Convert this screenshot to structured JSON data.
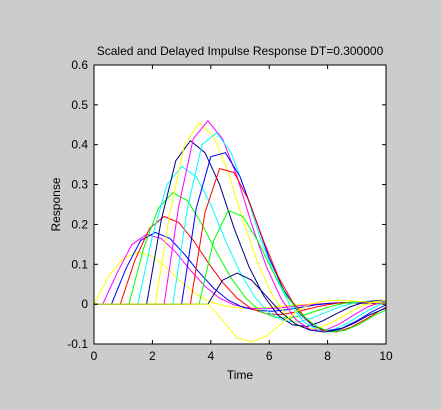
{
  "chart_data": {
    "type": "line",
    "title": "Scaled and Delayed Impulse Response DT=0.300000",
    "xlabel": "Time",
    "ylabel": "Response",
    "xlim": [
      0,
      10
    ],
    "ylim": [
      -0.1,
      0.6
    ],
    "xticks": [
      0,
      2,
      4,
      6,
      8,
      10
    ],
    "xtick_labels": [
      "0",
      "2",
      "4",
      "6",
      "8",
      "10"
    ],
    "yticks": [
      -0.1,
      0,
      0.1,
      0.2,
      0.3,
      0.4,
      0.5,
      0.6
    ],
    "ytick_labels": [
      "-0.1",
      "0",
      "0.1",
      "0.2",
      "0.3",
      "0.4",
      "0.5",
      "0.6"
    ],
    "grid": false,
    "background": "#cccccc",
    "axes_background": "#ffffff",
    "series": [
      {
        "color": "#ffff00",
        "x": [
          0,
          0.5,
          1,
          1.5,
          2,
          2.5,
          3,
          3.5,
          4,
          4.5,
          5,
          5.5,
          6,
          6.5,
          7,
          7.5,
          8,
          8.5,
          9,
          9.5,
          10
        ],
        "y": [
          0,
          0.07,
          0.115,
          0.13,
          0.12,
          0.09,
          0.055,
          0.025,
          0.005,
          -0.005,
          -0.01,
          -0.01,
          -0.008,
          -0.005,
          -0.002,
          0,
          0.002,
          0.002,
          0.001,
          0,
          0
        ]
      },
      {
        "color": "#ff00ff",
        "x": [
          0,
          0.3,
          0.8,
          1.3,
          1.8,
          2.3,
          2.8,
          3.3,
          3.8,
          4.3,
          4.8,
          5.3,
          5.8,
          6.3,
          6.8,
          7.3,
          7.8,
          8.3,
          8.8,
          9.3,
          10
        ],
        "y": [
          0,
          0,
          0.08,
          0.15,
          0.175,
          0.165,
          0.13,
          0.085,
          0.045,
          0.015,
          -0.002,
          -0.01,
          -0.012,
          -0.01,
          -0.006,
          -0.002,
          0.001,
          0.003,
          0.003,
          0.002,
          0.001
        ]
      },
      {
        "color": "#0000ff",
        "x": [
          0,
          0.6,
          1.1,
          1.6,
          2.1,
          2.6,
          3.1,
          3.6,
          4.1,
          4.6,
          5.1,
          5.6,
          6.1,
          6.6,
          7.1,
          7.6,
          8.1,
          8.6,
          9.1,
          9.6,
          10
        ],
        "y": [
          0,
          0,
          0.09,
          0.16,
          0.18,
          0.165,
          0.125,
          0.08,
          0.04,
          0.01,
          -0.008,
          -0.016,
          -0.018,
          -0.014,
          -0.008,
          -0.002,
          0.002,
          0.004,
          0.003,
          0.002,
          0.001
        ]
      },
      {
        "color": "#ff0000",
        "x": [
          0,
          0.9,
          1.4,
          1.9,
          2.4,
          2.9,
          3.4,
          3.9,
          4.4,
          4.9,
          5.4,
          5.9,
          6.4,
          6.9,
          7.4,
          7.9,
          8.4,
          8.9,
          9.4,
          10
        ],
        "y": [
          0,
          0,
          0.11,
          0.19,
          0.22,
          0.205,
          0.16,
          0.105,
          0.055,
          0.015,
          -0.012,
          -0.024,
          -0.026,
          -0.02,
          -0.011,
          -0.003,
          0.003,
          0.005,
          0.004,
          0.002
        ]
      },
      {
        "color": "#00ff00",
        "x": [
          0,
          1.2,
          1.7,
          2.2,
          2.7,
          3.2,
          3.7,
          4.2,
          4.7,
          5.2,
          5.7,
          6.2,
          6.7,
          7.2,
          7.7,
          8.2,
          8.7,
          9.2,
          9.7,
          10
        ],
        "y": [
          0,
          0,
          0.14,
          0.24,
          0.28,
          0.26,
          0.2,
          0.13,
          0.065,
          0.015,
          -0.018,
          -0.033,
          -0.035,
          -0.027,
          -0.015,
          -0.004,
          0.004,
          0.007,
          0.005,
          0.004
        ]
      },
      {
        "color": "#00ffff",
        "x": [
          0,
          1.5,
          2.0,
          2.5,
          3.0,
          3.5,
          4.0,
          4.5,
          5.0,
          5.5,
          6.0,
          6.5,
          7.0,
          7.5,
          8.0,
          8.5,
          9.0,
          9.5,
          10
        ],
        "y": [
          0,
          0,
          0.17,
          0.3,
          0.345,
          0.32,
          0.25,
          0.16,
          0.08,
          0.018,
          -0.022,
          -0.042,
          -0.045,
          -0.034,
          -0.019,
          -0.005,
          0.005,
          0.008,
          0.007
        ]
      },
      {
        "color": "#000080",
        "x": [
          0,
          1.8,
          2.3,
          2.8,
          3.3,
          3.8,
          4.3,
          4.8,
          5.3,
          5.8,
          6.3,
          6.8,
          7.3,
          7.8,
          8.3,
          8.8,
          9.3,
          9.8,
          10
        ],
        "y": [
          0,
          0,
          0.21,
          0.36,
          0.41,
          0.38,
          0.3,
          0.19,
          0.095,
          0.022,
          -0.028,
          -0.052,
          -0.056,
          -0.043,
          -0.024,
          -0.006,
          0.006,
          0.01,
          0.009
        ]
      },
      {
        "color": "#ffff00",
        "x": [
          0,
          2.1,
          2.6,
          3.1,
          3.6,
          4.1,
          4.6,
          5.1,
          5.6,
          6.1,
          6.6,
          7.1,
          7.6,
          8.1,
          8.6,
          9.1,
          9.6,
          10
        ],
        "y": [
          0,
          0,
          0.23,
          0.4,
          0.455,
          0.42,
          0.33,
          0.21,
          0.105,
          0.024,
          -0.03,
          -0.058,
          -0.062,
          -0.048,
          -0.027,
          -0.007,
          0.006,
          0.01
        ]
      },
      {
        "color": "#ff00ff",
        "x": [
          0,
          2.4,
          2.9,
          3.4,
          3.9,
          4.4,
          4.9,
          5.4,
          5.9,
          6.4,
          6.9,
          7.4,
          7.9,
          8.4,
          8.9,
          9.4,
          9.9,
          10
        ],
        "y": [
          0,
          0,
          0.245,
          0.415,
          0.46,
          0.415,
          0.32,
          0.2,
          0.095,
          0.015,
          -0.038,
          -0.064,
          -0.066,
          -0.05,
          -0.027,
          -0.006,
          0.006,
          0.007
        ]
      },
      {
        "color": "#00ffff",
        "x": [
          0,
          2.7,
          3.2,
          3.7,
          4.2,
          4.7,
          5.2,
          5.7,
          6.2,
          6.7,
          7.2,
          7.7,
          8.2,
          8.7,
          9.2,
          9.7,
          10
        ],
        "y": [
          0,
          0,
          0.24,
          0.4,
          0.43,
          0.38,
          0.28,
          0.165,
          0.07,
          0.0,
          -0.045,
          -0.066,
          -0.064,
          -0.047,
          -0.024,
          -0.004,
          0.004
        ]
      },
      {
        "color": "#0000ff",
        "x": [
          0,
          3.0,
          3.5,
          4.0,
          4.5,
          5.0,
          5.5,
          6.0,
          6.5,
          7.0,
          7.5,
          8.0,
          8.5,
          9.0,
          9.5,
          10
        ],
        "y": [
          0,
          0,
          0.24,
          0.37,
          0.38,
          0.32,
          0.22,
          0.115,
          0.035,
          -0.02,
          -0.055,
          -0.067,
          -0.06,
          -0.042,
          -0.02,
          -0.002
        ]
      },
      {
        "color": "#ff0000",
        "x": [
          0,
          3.3,
          3.8,
          4.3,
          4.8,
          5.3,
          5.8,
          6.3,
          6.8,
          7.3,
          7.8,
          8.3,
          8.8,
          9.3,
          9.8,
          10
        ],
        "y": [
          0,
          0,
          0.23,
          0.34,
          0.33,
          0.26,
          0.16,
          0.07,
          0.005,
          -0.04,
          -0.065,
          -0.07,
          -0.058,
          -0.038,
          -0.016,
          -0.008
        ]
      },
      {
        "color": "#00ff00",
        "x": [
          0,
          3.6,
          4.1,
          4.6,
          5.1,
          5.6,
          6.1,
          6.6,
          7.1,
          7.6,
          8.1,
          8.6,
          9.1,
          9.6,
          10
        ],
        "y": [
          0,
          0,
          0.16,
          0.235,
          0.22,
          0.16,
          0.085,
          0.02,
          -0.025,
          -0.055,
          -0.07,
          -0.066,
          -0.05,
          -0.028,
          -0.015
        ]
      },
      {
        "color": "#000080",
        "x": [
          0,
          3.9,
          4.4,
          4.9,
          5.4,
          5.9,
          6.4,
          6.9,
          7.4,
          7.9,
          8.4,
          8.9,
          9.4,
          10
        ],
        "y": [
          0,
          0,
          0.06,
          0.078,
          0.06,
          0.02,
          -0.02,
          -0.05,
          -0.065,
          -0.07,
          -0.064,
          -0.048,
          -0.028,
          -0.01
        ]
      },
      {
        "color": "#ffff00",
        "x": [
          0,
          3.9,
          4.4,
          4.9,
          5.4,
          5.9,
          6.4,
          6.9,
          7.4,
          7.9,
          8.4,
          8.9,
          9.4,
          10
        ],
        "y": [
          0,
          0,
          -0.04,
          -0.085,
          -0.095,
          -0.08,
          -0.05,
          -0.02,
          0.0,
          0.008,
          0.01,
          0.008,
          0.005,
          0.002
        ]
      }
    ]
  }
}
